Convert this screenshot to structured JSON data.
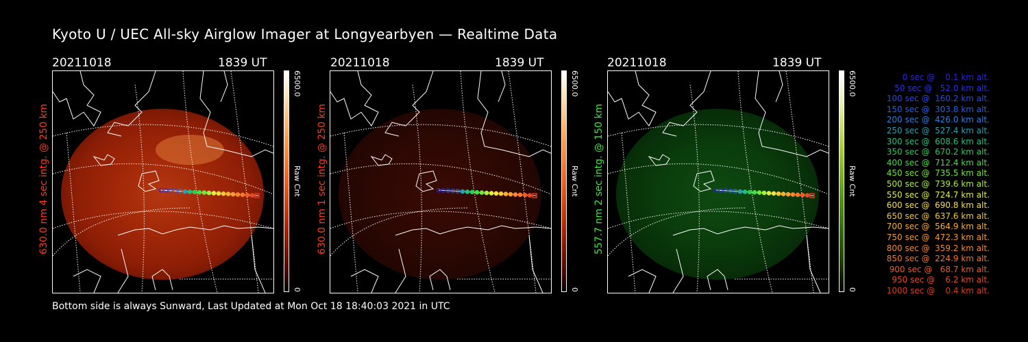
{
  "title": "Kyoto U / UEC All-sky Airglow Imager at Longyearbyen — Realtime Data",
  "footer": "Bottom side is always Sunward, Last Updated at Mon Oct 18 18:40:03 2021 in UTC",
  "panels": [
    {
      "date": "20211018",
      "time": "1839 UT",
      "ylabel": "630.0 nm 4 sec intg. @ 250 km",
      "ylabel_color": "#ff3a1a",
      "cbar_max": "6500.0",
      "cbar_min": "0",
      "cbar_unit": "Raw Cnt",
      "colormap": "red"
    },
    {
      "date": "20211018",
      "time": "1839 UT",
      "ylabel": "630.0 nm 1 sec intg. @ 250 km",
      "ylabel_color": "#ff3a1a",
      "cbar_max": "6500.0",
      "cbar_min": "0",
      "cbar_unit": "Raw Cnt",
      "colormap": "red"
    },
    {
      "date": "20211018",
      "time": "1839 UT",
      "ylabel": "557.7 nm 2 sec intg. @ 150 km",
      "ylabel_color": "#3ee83e",
      "cbar_max": "6500.0",
      "cbar_min": "0",
      "cbar_unit": "Raw Cnt",
      "colormap": "green"
    }
  ],
  "legend": [
    {
      "text": "   0 sec @    0.1 km alt.",
      "color": "#2a24e0"
    },
    {
      "text": "  50 sec @   52.0 km alt.",
      "color": "#2a30e6"
    },
    {
      "text": " 100 sec @  160.2 km alt.",
      "color": "#2848e8"
    },
    {
      "text": " 150 sec @  303.8 km alt.",
      "color": "#2860ea"
    },
    {
      "text": " 200 sec @  426.0 km alt.",
      "color": "#2a80e0"
    },
    {
      "text": " 250 sec @  527.4 km alt.",
      "color": "#2aa0b0"
    },
    {
      "text": " 300 sec @  608.6 km alt.",
      "color": "#22c080"
    },
    {
      "text": " 350 sec @  670.2 km alt.",
      "color": "#28d050"
    },
    {
      "text": " 400 sec @  712.4 km alt.",
      "color": "#40e040"
    },
    {
      "text": " 450 sec @  735.5 km alt.",
      "color": "#70e838"
    },
    {
      "text": " 500 sec @  739.6 km alt.",
      "color": "#a8f040"
    },
    {
      "text": " 550 sec @  724.7 km alt.",
      "color": "#e0f040"
    },
    {
      "text": " 600 sec @  690.8 km alt.",
      "color": "#f8e040"
    },
    {
      "text": " 650 sec @  637.6 km alt.",
      "color": "#f8c838"
    },
    {
      "text": " 700 sec @  564.9 km alt.",
      "color": "#f8b030"
    },
    {
      "text": " 750 sec @  472.3 km alt.",
      "color": "#f89c30"
    },
    {
      "text": " 800 sec @  359.2 km alt.",
      "color": "#f88830"
    },
    {
      "text": " 850 sec @  224.9 km alt.",
      "color": "#f87430"
    },
    {
      "text": " 900 sec @   68.7 km alt.",
      "color": "#f05c28"
    },
    {
      "text": " 950 sec @    6.2 km alt.",
      "color": "#e84824"
    },
    {
      "text": "1000 sec @    0.4 km alt.",
      "color": "#e03a20"
    }
  ],
  "track_colors": [
    "#2a24e0",
    "#2a30e6",
    "#2848e8",
    "#2860ea",
    "#2a80e0",
    "#2aa0b0",
    "#22c080",
    "#28d050",
    "#40e040",
    "#70e838",
    "#a8f040",
    "#e0f040",
    "#f8e040",
    "#f8c838",
    "#f8b030",
    "#f89c30",
    "#f88830",
    "#f87430",
    "#f05c28",
    "#e84824",
    "#e03a20"
  ]
}
